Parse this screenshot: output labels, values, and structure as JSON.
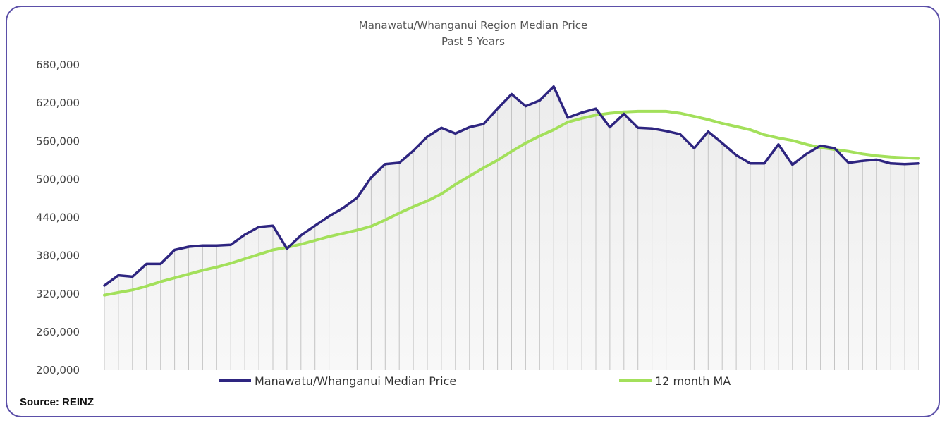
{
  "chart_data": {
    "type": "line",
    "title": "Manawatu/Whanganui  Region Median Price",
    "subtitle": "Past 5 Years",
    "ylim": [
      200000,
      680000
    ],
    "yticks": [
      "200,000",
      "260,000",
      "320,000",
      "380,000",
      "440,000",
      "500,000",
      "560,000",
      "620,000",
      "680,000"
    ],
    "grid": "vertical drop lines under primary series",
    "legend_position": "bottom",
    "source": "Source: REINZ",
    "series": [
      {
        "name": "Manawatu/Whanganui Median Price",
        "color": "#2e2580",
        "values": [
          333000,
          349000,
          347000,
          367000,
          367000,
          389000,
          394000,
          396000,
          396000,
          397000,
          413000,
          425000,
          427000,
          391000,
          412000,
          427000,
          442000,
          455000,
          471000,
          503000,
          524000,
          526000,
          545000,
          567000,
          581000,
          572000,
          582000,
          587000,
          611000,
          634000,
          615000,
          624000,
          646000,
          597000,
          605000,
          611000,
          582000,
          603000,
          581000,
          580000,
          576000,
          571000,
          549000,
          575000,
          557000,
          538000,
          525000,
          525000,
          555000,
          523000,
          540000,
          553000,
          549000,
          526000,
          529000,
          531000,
          525000,
          524000,
          525000
        ]
      },
      {
        "name": "12 month MA",
        "color": "#a3e05b",
        "values": [
          318000,
          322000,
          326000,
          332000,
          339000,
          345000,
          351000,
          357000,
          362000,
          368000,
          375000,
          382000,
          389000,
          393000,
          398000,
          404000,
          410000,
          415000,
          420000,
          426000,
          436000,
          447000,
          457000,
          466000,
          477000,
          492000,
          505000,
          518000,
          530000,
          544000,
          557000,
          568000,
          578000,
          590000,
          596000,
          601000,
          604000,
          606000,
          607000,
          607000,
          607000,
          604000,
          599000,
          594000,
          588000,
          583000,
          578000,
          570000,
          565000,
          561000,
          555000,
          550000,
          547000,
          544000,
          540000,
          537000,
          535000,
          534000,
          533000
        ]
      }
    ]
  }
}
